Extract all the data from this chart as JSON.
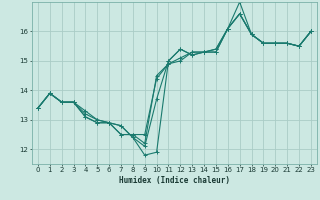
{
  "xlabel": "Humidex (Indice chaleur)",
  "bg_color": "#cce8e2",
  "grid_color": "#aaccc6",
  "line_color": "#1a7a6e",
  "xlim": [
    -0.5,
    23.5
  ],
  "ylim": [
    11.5,
    17.0
  ],
  "xticks": [
    0,
    1,
    2,
    3,
    4,
    5,
    6,
    7,
    8,
    9,
    10,
    11,
    12,
    13,
    14,
    15,
    16,
    17,
    18,
    19,
    20,
    21,
    22,
    23
  ],
  "yticks": [
    12,
    13,
    14,
    15,
    16
  ],
  "lines": [
    {
      "x": [
        0,
        1,
        2,
        3,
        4,
        5,
        6,
        7,
        8,
        9,
        10,
        11,
        12,
        13,
        14,
        15,
        16,
        17,
        18,
        19,
        20,
        21,
        22,
        23
      ],
      "y": [
        13.4,
        13.9,
        13.6,
        13.6,
        13.1,
        12.9,
        12.9,
        12.8,
        12.4,
        11.8,
        11.9,
        15.0,
        15.4,
        15.2,
        15.3,
        15.3,
        16.1,
        16.6,
        15.9,
        15.6,
        15.6,
        15.6,
        15.5,
        16.0
      ]
    },
    {
      "x": [
        0,
        1,
        2,
        3,
        4,
        5,
        6,
        7,
        8,
        9,
        10,
        11,
        12,
        13,
        14,
        15,
        16,
        17,
        18,
        19,
        20,
        21,
        22,
        23
      ],
      "y": [
        13.4,
        13.9,
        13.6,
        13.6,
        13.1,
        12.9,
        12.9,
        12.8,
        12.4,
        12.1,
        13.7,
        15.0,
        15.4,
        15.2,
        15.3,
        15.3,
        16.1,
        17.0,
        15.9,
        15.6,
        15.6,
        15.6,
        15.5,
        16.0
      ]
    },
    {
      "x": [
        0,
        1,
        2,
        3,
        4,
        5,
        6,
        7,
        8,
        9,
        10,
        11,
        12,
        13,
        14,
        15,
        16,
        17,
        18,
        19,
        20,
        21,
        22,
        23
      ],
      "y": [
        13.4,
        13.9,
        13.6,
        13.6,
        13.3,
        13.0,
        12.9,
        12.5,
        12.5,
        12.2,
        14.5,
        14.9,
        15.1,
        15.3,
        15.3,
        15.4,
        16.1,
        16.6,
        15.9,
        15.6,
        15.6,
        15.6,
        15.5,
        16.0
      ]
    },
    {
      "x": [
        0,
        1,
        2,
        3,
        4,
        5,
        6,
        7,
        8,
        9,
        10,
        11,
        12,
        13,
        14,
        15,
        16,
        17,
        18,
        19,
        20,
        21,
        22,
        23
      ],
      "y": [
        13.4,
        13.9,
        13.6,
        13.6,
        13.2,
        13.0,
        12.9,
        12.5,
        12.5,
        12.5,
        14.4,
        14.9,
        15.0,
        15.3,
        15.3,
        15.4,
        16.1,
        16.6,
        15.9,
        15.6,
        15.6,
        15.6,
        15.5,
        16.0
      ]
    }
  ]
}
